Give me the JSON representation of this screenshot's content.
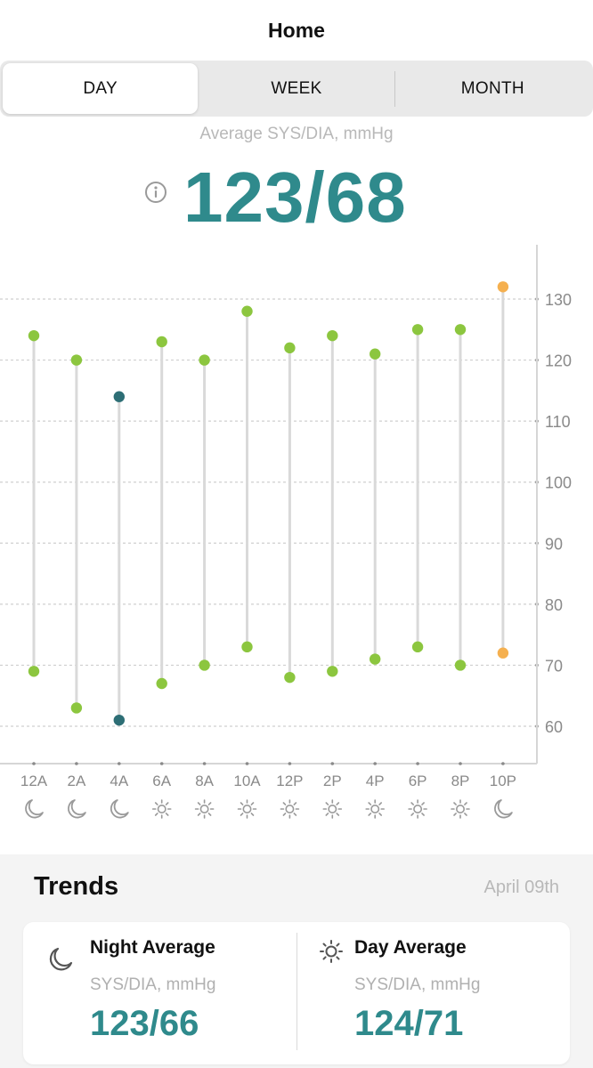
{
  "header": {
    "title": "Home"
  },
  "tabs": [
    {
      "label": "DAY",
      "active": true
    },
    {
      "label": "WEEK",
      "active": false
    },
    {
      "label": "MONTH",
      "active": false
    }
  ],
  "summary": {
    "label": "Average SYS/DIA, mmHg",
    "value": "123/68",
    "info_icon": "info-icon"
  },
  "chart_data": {
    "type": "range",
    "categories": [
      "12A",
      "2A",
      "4A",
      "6A",
      "8A",
      "10A",
      "12P",
      "2P",
      "4P",
      "6P",
      "8P",
      "10P"
    ],
    "period_icons": [
      "moon",
      "moon",
      "moon",
      "sun",
      "sun",
      "sun",
      "sun",
      "sun",
      "sun",
      "sun",
      "sun",
      "moon"
    ],
    "sys": [
      124,
      120,
      114,
      123,
      120,
      128,
      122,
      124,
      121,
      125,
      125,
      132
    ],
    "dia": [
      69,
      63,
      61,
      67,
      70,
      73,
      68,
      69,
      71,
      73,
      70,
      72
    ],
    "point_colors": [
      "#8cc63f",
      "#8cc63f",
      "#2d6e75",
      "#8cc63f",
      "#8cc63f",
      "#8cc63f",
      "#8cc63f",
      "#8cc63f",
      "#8cc63f",
      "#8cc63f",
      "#8cc63f",
      "#f5b04f"
    ],
    "y_ticks": [
      130,
      120,
      110,
      100,
      90,
      80,
      70,
      60
    ],
    "ylim": [
      54,
      140
    ],
    "grid": true,
    "y_axis_side": "right"
  },
  "trends": {
    "title": "Trends",
    "date": "April 09th",
    "night": {
      "label": "Night Average",
      "unit": "SYS/DIA, mmHg",
      "value": "123/66",
      "icon": "moon-icon"
    },
    "day": {
      "label": "Day Average",
      "unit": "SYS/DIA, mmHg",
      "value": "124/71",
      "icon": "sun-icon"
    }
  },
  "colors": {
    "accent": "#2f8a8c",
    "normal": "#8cc63f",
    "low": "#2d6e75",
    "elevated": "#f5b04f",
    "gray_text": "#b8b8b8"
  }
}
